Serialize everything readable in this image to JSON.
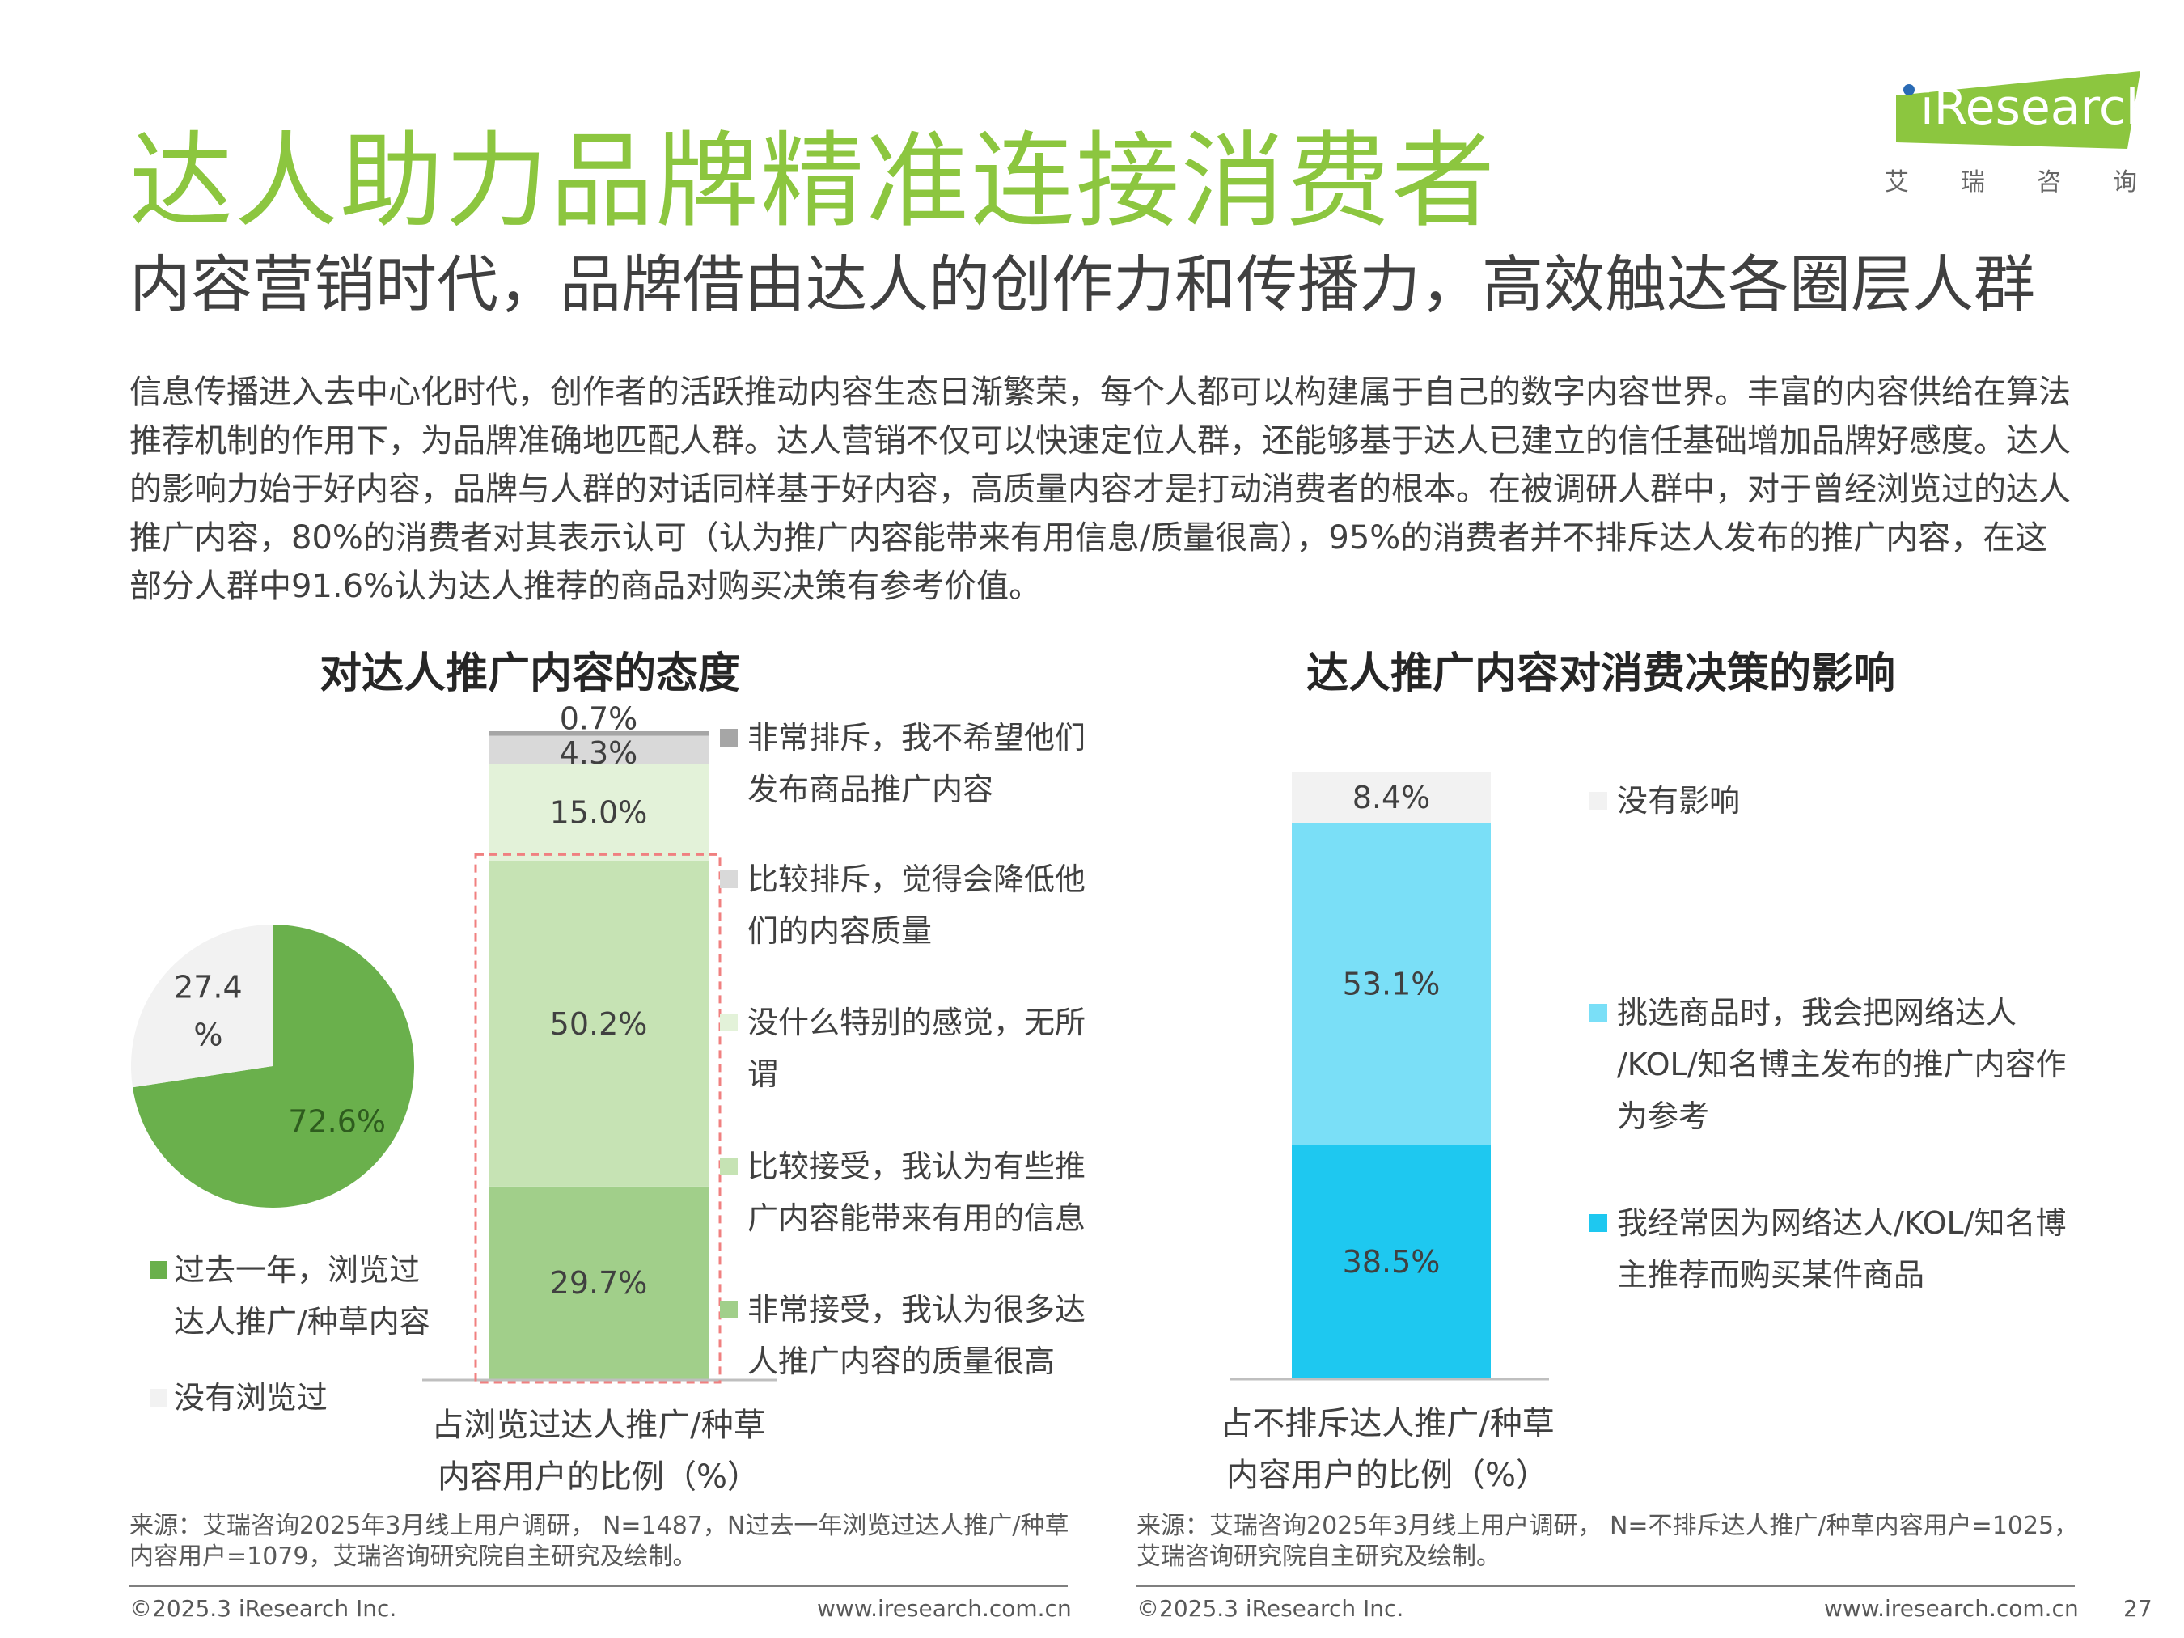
{
  "header": {
    "title": "达人助力品牌精准连接消费者",
    "subtitle": "内容营销时代，品牌借由达人的创作力和传播力，高效触达各圈层人群",
    "logo_text": "iResearch",
    "logo_cn": [
      "艾",
      "瑞",
      "咨",
      "询"
    ]
  },
  "body_text": "信息传播进入去中心化时代，创作者的活跃推动内容生态日渐繁荣，每个人都可以构建属于自己的数字内容世界。丰富的内容供给在算法推荐机制的作用下，为品牌准确地匹配人群。达人营销不仅可以快速定位人群，还能够基于达人已建立的信任基础增加品牌好感度。达人的影响力始于好内容，品牌与人群的对话同样基于好内容，高质量内容才是打动消费者的根本。在被调研人群中，对于曾经浏览过的达人推广内容，80%的消费者对其表示认可（认为推广内容能带来有用信息/质量很高），95%的消费者并不排斥达人发布的推广内容，在这部分人群中91.6%认为达人推荐的商品对购买决策有参考价值。",
  "colors": {
    "accent_green": "#8cc63f",
    "pie_browsed": "#6ab04c",
    "pie_not": "#f2f2f2",
    "bar1": [
      "#a1cf8a",
      "#c6e3b4",
      "#e3f2d9",
      "#d9d9d9",
      "#a6a6a6"
    ],
    "bar2": [
      "#1ec8f0",
      "#7adff7",
      "#f2f2f2"
    ]
  },
  "chart_data": [
    {
      "type": "pie",
      "slices": [
        {
          "label": "过去一年，浏览过达人推广/种草内容",
          "value": 72.6,
          "display": "72.6%"
        },
        {
          "label": "没有浏览过",
          "value": 27.4,
          "display": "27.4\n%"
        }
      ],
      "legend": [
        "过去一年，浏览过\n达人推广/种草内容",
        "没有浏览过"
      ]
    },
    {
      "type": "bar",
      "stacked": true,
      "title": "对达人推广内容的态度",
      "xlabel": "占浏览过达人推广/种草\n内容用户的比例（%）",
      "ylim": [
        0,
        100
      ],
      "series": [
        {
          "name": "非常接受，我认为很多达\n人推广内容的质量很高",
          "value": 29.7,
          "display": "29.7%"
        },
        {
          "name": "比较接受，我认为有些推\n广内容能带来有用的信息",
          "value": 50.2,
          "display": "50.2%"
        },
        {
          "name": "没什么特别的感觉，无所\n谓",
          "value": 15.0,
          "display": "15.0%"
        },
        {
          "name": "比较排斥，觉得会降低他\n们的内容质量",
          "value": 4.3,
          "display": "4.3%"
        },
        {
          "name": "非常排斥，我不希望他们\n发布商品推广内容",
          "value": 0.7,
          "display": "0.7%"
        }
      ]
    },
    {
      "type": "bar",
      "stacked": true,
      "title": "达人推广内容对消费决策的影响",
      "xlabel": "占不排斥达人推广/种草\n内容用户的比例（%）",
      "ylim": [
        0,
        100
      ],
      "series": [
        {
          "name": "我经常因为网络达人/KOL/知名博\n主推荐而购买某件商品",
          "value": 38.5,
          "display": "38.5%"
        },
        {
          "name": "挑选商品时，我会把网络达人\n/KOL/知名博主发布的推广内容作\n为参考",
          "value": 53.1,
          "display": "53.1%"
        },
        {
          "name": "没有影响",
          "value": 8.4,
          "display": "8.4%"
        }
      ]
    }
  ],
  "sources": {
    "left": "来源：艾瑞咨询2025年3月线上用户调研， N=1487，N过去一年浏览过达人推广/种草内容用户=1079，艾瑞咨询研究院自主研究及绘制。",
    "right": "来源：艾瑞咨询2025年3月线上用户调研， N=不排斥达人推广/种草内容用户=1025，艾瑞咨询研究院自主研究及绘制。"
  },
  "footer": {
    "copyright_left": "©2025.3 iResearch Inc.",
    "url_left": "www.iresearch.com.cn",
    "copyright_right": "©2025.3 iResearch Inc.",
    "url_right": "www.iresearch.com.cn",
    "page_number": "27"
  }
}
